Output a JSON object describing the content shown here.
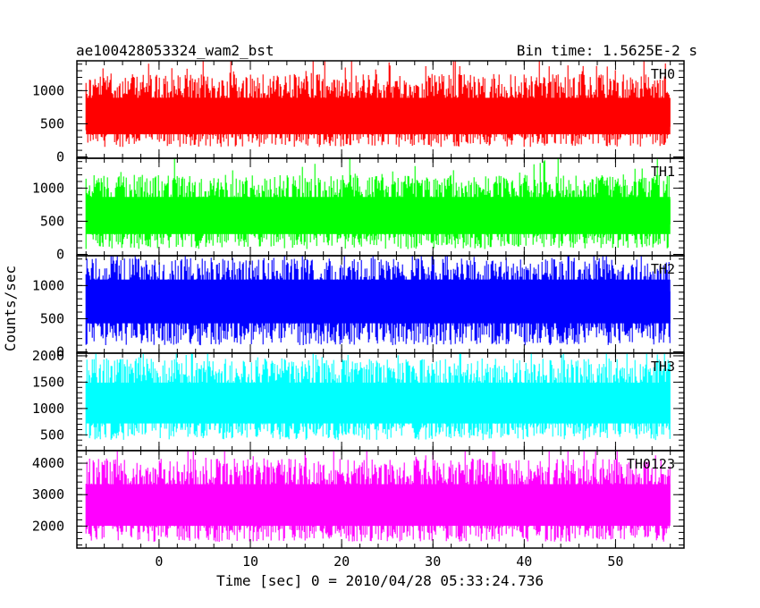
{
  "header": {
    "title": "ae100428053324_wam2_bst",
    "bin_time": "Bin time: 1.5625E-2 s"
  },
  "y_label": "Counts/sec",
  "x_label": "Time [sec] 0 = 2010/04/28 05:33:24.736",
  "chart_data": {
    "type": "line",
    "xlabel": "Time [sec] 0 = 2010/04/28 05:33:24.736",
    "ylabel": "Counts/sec",
    "xlim": [
      -9,
      57.5
    ],
    "x_ticks": [
      0,
      10,
      20,
      30,
      40,
      50
    ],
    "x_range_data": [
      -8,
      56
    ],
    "bin_time": 0.015625,
    "panels": [
      {
        "name": "TH0",
        "color": "#ff0000",
        "ylim": [
          -20,
          1450
        ],
        "y_ticks": [
          0,
          500,
          1000
        ],
        "mean": 650,
        "low": 150,
        "high": 1250
      },
      {
        "name": "TH1",
        "color": "#00ff00",
        "ylim": [
          -20,
          1450
        ],
        "y_ticks": [
          0,
          500,
          1000
        ],
        "mean": 620,
        "low": 80,
        "high": 1200
      },
      {
        "name": "TH2",
        "color": "#0000ff",
        "ylim": [
          -20,
          1450
        ],
        "y_ticks": [
          0,
          500,
          1000
        ],
        "mean": 800,
        "low": 100,
        "high": 1420
      },
      {
        "name": "TH3",
        "color": "#00ffff",
        "ylim": [
          200,
          2050
        ],
        "y_ticks": [
          500,
          1000,
          1500,
          2000
        ],
        "mean": 1150,
        "low": 400,
        "high": 1950
      },
      {
        "name": "TH0123",
        "color": "#ff00ff",
        "ylim": [
          1300,
          4400
        ],
        "y_ticks": [
          2000,
          3000,
          4000
        ],
        "mean": 2750,
        "low": 1500,
        "high": 4150
      }
    ]
  }
}
